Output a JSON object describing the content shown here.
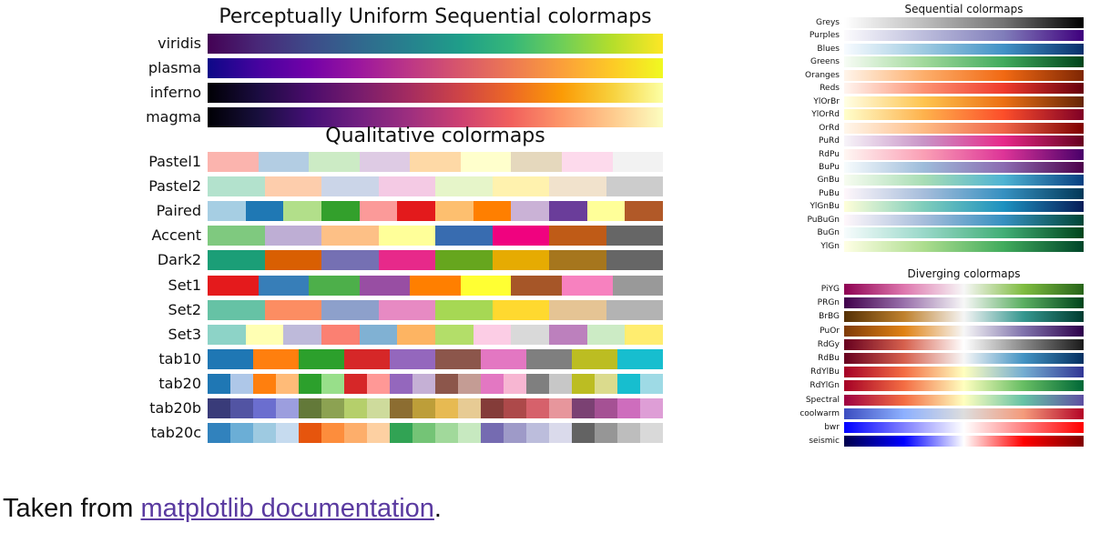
{
  "colors": {
    "link": "#5a3aa0"
  },
  "uniform": {
    "title": "Perceptually Uniform Sequential colormaps",
    "maps": [
      {
        "name": "viridis",
        "stops": [
          "#440154",
          "#482878",
          "#3e4a89",
          "#31688e",
          "#26828e",
          "#1f9e89",
          "#35b779",
          "#6ece58",
          "#b5de2b",
          "#fde725"
        ]
      },
      {
        "name": "plasma",
        "stops": [
          "#0d0887",
          "#46039f",
          "#7201a8",
          "#9c179e",
          "#bd3786",
          "#d8576b",
          "#ed7953",
          "#fb9f3a",
          "#fdca26",
          "#f0f921"
        ]
      },
      {
        "name": "inferno",
        "stops": [
          "#000004",
          "#1b0c41",
          "#4a0c6b",
          "#781c6d",
          "#a52c60",
          "#cf4446",
          "#ed6925",
          "#fb9b06",
          "#f7d13d",
          "#fcffa4"
        ]
      },
      {
        "name": "magma",
        "stops": [
          "#000004",
          "#180f3d",
          "#440f76",
          "#721f81",
          "#9e2f7f",
          "#cd4071",
          "#f1605d",
          "#fd9668",
          "#feca8d",
          "#fcfdbf"
        ]
      }
    ]
  },
  "qualitative": {
    "title": "Qualitative colormaps",
    "maps": [
      {
        "name": "Pastel1",
        "colors": [
          "#fbb4ae",
          "#b3cde3",
          "#ccebc5",
          "#decbe4",
          "#fed9a6",
          "#ffffcc",
          "#e5d8bd",
          "#fddaec",
          "#f2f2f2"
        ]
      },
      {
        "name": "Pastel2",
        "colors": [
          "#b3e2cd",
          "#fdcdac",
          "#cbd5e8",
          "#f4cae4",
          "#e6f5c9",
          "#fff2ae",
          "#f1e2cc",
          "#cccccc"
        ]
      },
      {
        "name": "Paired",
        "colors": [
          "#a6cee3",
          "#1f78b4",
          "#b2df8a",
          "#33a02c",
          "#fb9a99",
          "#e31a1c",
          "#fdbf6f",
          "#ff7f00",
          "#cab2d6",
          "#6a3d9a",
          "#ffff99",
          "#b15928"
        ]
      },
      {
        "name": "Accent",
        "colors": [
          "#7fc97f",
          "#beaed4",
          "#fdc086",
          "#ffff99",
          "#386cb0",
          "#f0027f",
          "#bf5b17",
          "#666666"
        ]
      },
      {
        "name": "Dark2",
        "colors": [
          "#1b9e77",
          "#d95f02",
          "#7570b3",
          "#e7298a",
          "#66a61e",
          "#e6ab02",
          "#a6761d",
          "#666666"
        ]
      },
      {
        "name": "Set1",
        "colors": [
          "#e41a1c",
          "#377eb8",
          "#4daf4a",
          "#984ea3",
          "#ff7f00",
          "#ffff33",
          "#a65628",
          "#f781bf",
          "#999999"
        ]
      },
      {
        "name": "Set2",
        "colors": [
          "#66c2a5",
          "#fc8d62",
          "#8da0cb",
          "#e78ac3",
          "#a6d854",
          "#ffd92f",
          "#e5c494",
          "#b3b3b3"
        ]
      },
      {
        "name": "Set3",
        "colors": [
          "#8dd3c7",
          "#ffffb3",
          "#bebada",
          "#fb8072",
          "#80b1d3",
          "#fdb462",
          "#b3de69",
          "#fccde5",
          "#d9d9d9",
          "#bc80bd",
          "#ccebc5",
          "#ffed6f"
        ]
      },
      {
        "name": "tab10",
        "colors": [
          "#1f77b4",
          "#ff7f0e",
          "#2ca02c",
          "#d62728",
          "#9467bd",
          "#8c564b",
          "#e377c2",
          "#7f7f7f",
          "#bcbd22",
          "#17becf"
        ]
      },
      {
        "name": "tab20",
        "colors": [
          "#1f77b4",
          "#aec7e8",
          "#ff7f0e",
          "#ffbb78",
          "#2ca02c",
          "#98df8a",
          "#d62728",
          "#ff9896",
          "#9467bd",
          "#c5b0d5",
          "#8c564b",
          "#c49c94",
          "#e377c2",
          "#f7b6d2",
          "#7f7f7f",
          "#c7c7c7",
          "#bcbd22",
          "#dbdb8d",
          "#17becf",
          "#9edae5"
        ]
      },
      {
        "name": "tab20b",
        "colors": [
          "#393b79",
          "#5254a3",
          "#6b6ecf",
          "#9c9ede",
          "#637939",
          "#8ca252",
          "#b5cf6b",
          "#cedb9c",
          "#8c6d31",
          "#bd9e39",
          "#e7ba52",
          "#e7cb94",
          "#843c39",
          "#ad494a",
          "#d6616b",
          "#e7969c",
          "#7b4173",
          "#a55194",
          "#ce6dbd",
          "#de9ed6"
        ]
      },
      {
        "name": "tab20c",
        "colors": [
          "#3182bd",
          "#6baed6",
          "#9ecae1",
          "#c6dbef",
          "#e6550d",
          "#fd8d3c",
          "#fdae6b",
          "#fdd0a2",
          "#31a354",
          "#74c476",
          "#a1d99b",
          "#c7e9c0",
          "#756bb1",
          "#9e9ac8",
          "#bcbddc",
          "#dadaeb",
          "#636363",
          "#969696",
          "#bdbdbd",
          "#d9d9d9"
        ]
      }
    ]
  },
  "sequential": {
    "title": "Sequential colormaps",
    "maps": [
      {
        "name": "Greys",
        "stops": [
          "#ffffff",
          "#bdbdbd",
          "#737373",
          "#000000"
        ]
      },
      {
        "name": "Purples",
        "stops": [
          "#fcfbfd",
          "#bcbddc",
          "#807dba",
          "#3f007d"
        ]
      },
      {
        "name": "Blues",
        "stops": [
          "#f7fbff",
          "#9ecae1",
          "#4292c6",
          "#08306b"
        ]
      },
      {
        "name": "Greens",
        "stops": [
          "#f7fcf5",
          "#a1d99b",
          "#41ab5d",
          "#00441b"
        ]
      },
      {
        "name": "Oranges",
        "stops": [
          "#fff5eb",
          "#fdae6b",
          "#f16913",
          "#7f2704"
        ]
      },
      {
        "name": "Reds",
        "stops": [
          "#fff5f0",
          "#fc9272",
          "#ef3b2c",
          "#67000d"
        ]
      },
      {
        "name": "YlOrBr",
        "stops": [
          "#ffffe5",
          "#fec44f",
          "#ec7014",
          "#662506"
        ]
      },
      {
        "name": "YlOrRd",
        "stops": [
          "#ffffcc",
          "#feb24c",
          "#fc4e2a",
          "#800026"
        ]
      },
      {
        "name": "OrRd",
        "stops": [
          "#fff7ec",
          "#fdbb84",
          "#ef6548",
          "#7f0000"
        ]
      },
      {
        "name": "PuRd",
        "stops": [
          "#f7f4f9",
          "#c994c7",
          "#e7298a",
          "#67001f"
        ]
      },
      {
        "name": "RdPu",
        "stops": [
          "#fff7f3",
          "#fa9fb5",
          "#dd3497",
          "#49006a"
        ]
      },
      {
        "name": "BuPu",
        "stops": [
          "#f7fcfd",
          "#9ebcda",
          "#8c6bb1",
          "#4d004b"
        ]
      },
      {
        "name": "GnBu",
        "stops": [
          "#f7fcf0",
          "#a8ddb5",
          "#4eb3d3",
          "#084081"
        ]
      },
      {
        "name": "PuBu",
        "stops": [
          "#fff7fb",
          "#a6bddb",
          "#3690c0",
          "#023858"
        ]
      },
      {
        "name": "YlGnBu",
        "stops": [
          "#ffffd9",
          "#7fcdbb",
          "#1d91c0",
          "#081d58"
        ]
      },
      {
        "name": "PuBuGn",
        "stops": [
          "#fff7fb",
          "#a6bddb",
          "#3690c0",
          "#014636"
        ]
      },
      {
        "name": "BuGn",
        "stops": [
          "#f7fcfd",
          "#99d8c9",
          "#41ae76",
          "#00441b"
        ]
      },
      {
        "name": "YlGn",
        "stops": [
          "#ffffe5",
          "#addd8e",
          "#41ab5d",
          "#004529"
        ]
      }
    ]
  },
  "diverging": {
    "title": "Diverging colormaps",
    "maps": [
      {
        "name": "PiYG",
        "stops": [
          "#8e0152",
          "#de77ae",
          "#f7f7f7",
          "#7fbc41",
          "#276419"
        ]
      },
      {
        "name": "PRGn",
        "stops": [
          "#40004b",
          "#9970ab",
          "#f7f7f7",
          "#5aae61",
          "#00441b"
        ]
      },
      {
        "name": "BrBG",
        "stops": [
          "#543005",
          "#bf812d",
          "#f5f5f5",
          "#35978f",
          "#003c30"
        ]
      },
      {
        "name": "PuOr",
        "stops": [
          "#7f3b08",
          "#e08214",
          "#f7f7f7",
          "#8073ac",
          "#2d004b"
        ]
      },
      {
        "name": "RdGy",
        "stops": [
          "#67001f",
          "#d6604d",
          "#ffffff",
          "#878787",
          "#1a1a1a"
        ]
      },
      {
        "name": "RdBu",
        "stops": [
          "#67001f",
          "#d6604d",
          "#f7f7f7",
          "#4393c3",
          "#053061"
        ]
      },
      {
        "name": "RdYlBu",
        "stops": [
          "#a50026",
          "#f46d43",
          "#ffffbf",
          "#74add1",
          "#313695"
        ]
      },
      {
        "name": "RdYlGn",
        "stops": [
          "#a50026",
          "#f46d43",
          "#ffffbf",
          "#66bd63",
          "#006837"
        ]
      },
      {
        "name": "Spectral",
        "stops": [
          "#9e0142",
          "#f46d43",
          "#ffffbf",
          "#66c2a5",
          "#5e4fa2"
        ]
      },
      {
        "name": "coolwarm",
        "stops": [
          "#3b4cc0",
          "#8db0fe",
          "#dddddd",
          "#f49a7b",
          "#b40426"
        ]
      },
      {
        "name": "bwr",
        "stops": [
          "#0000ff",
          "#ffffff",
          "#ff0000"
        ]
      },
      {
        "name": "seismic",
        "stops": [
          "#00004c",
          "#0000ff",
          "#ffffff",
          "#ff0000",
          "#800000"
        ]
      }
    ]
  },
  "footer": {
    "prefix": "Taken from ",
    "link_text": "matplotlib documentation",
    "suffix": "."
  }
}
